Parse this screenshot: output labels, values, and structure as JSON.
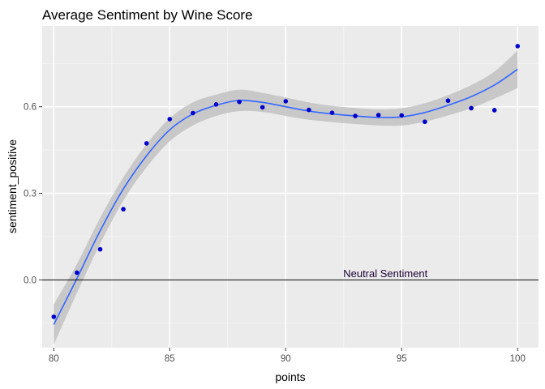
{
  "chart_data": {
    "type": "scatter",
    "title": "Average Sentiment by Wine Score",
    "xlabel": "points",
    "ylabel": "sentiment_positive",
    "xlim": [
      79.5,
      100.9
    ],
    "ylim": [
      -0.235,
      0.88
    ],
    "x_ticks": [
      80,
      85,
      90,
      95,
      100
    ],
    "x_tick_labels": [
      "80",
      "85",
      "90",
      "95",
      "100"
    ],
    "y_ticks": [
      0.0,
      0.3,
      0.6
    ],
    "y_tick_labels": [
      "0.0",
      "0.3",
      "0.6"
    ],
    "grid": true,
    "points": {
      "color": "#0000cc",
      "x": [
        80,
        81,
        82,
        83,
        84,
        85,
        86,
        87,
        88,
        89,
        90,
        91,
        92,
        93,
        94,
        95,
        96,
        97,
        98,
        99,
        100
      ],
      "y": [
        -0.128,
        0.025,
        0.106,
        0.245,
        0.473,
        0.557,
        0.578,
        0.608,
        0.617,
        0.598,
        0.619,
        0.589,
        0.579,
        0.568,
        0.571,
        0.57,
        0.548,
        0.621,
        0.595,
        0.588,
        0.81
      ]
    },
    "smooth": {
      "color": "#3366ff",
      "band_color": "#c2c2c2",
      "x": [
        80,
        81,
        82,
        83,
        84,
        85,
        86,
        87,
        88,
        89,
        90,
        91,
        92,
        93,
        94,
        95,
        96,
        97,
        98,
        99,
        100
      ],
      "y": [
        -0.155,
        0.005,
        0.17,
        0.315,
        0.43,
        0.52,
        0.575,
        0.605,
        0.622,
        0.615,
        0.6,
        0.585,
        0.575,
        0.568,
        0.563,
        0.565,
        0.58,
        0.605,
        0.635,
        0.675,
        0.73
      ],
      "lower": [
        -0.225,
        -0.045,
        0.125,
        0.275,
        0.39,
        0.48,
        0.535,
        0.568,
        0.585,
        0.582,
        0.568,
        0.555,
        0.547,
        0.54,
        0.535,
        0.535,
        0.548,
        0.57,
        0.595,
        0.628,
        0.665
      ],
      "upper": [
        -0.085,
        0.055,
        0.215,
        0.355,
        0.47,
        0.56,
        0.615,
        0.642,
        0.659,
        0.648,
        0.632,
        0.615,
        0.603,
        0.596,
        0.591,
        0.595,
        0.612,
        0.64,
        0.675,
        0.722,
        0.795
      ]
    },
    "hline": {
      "y": 0.0,
      "color": "#000000"
    },
    "annotations": [
      {
        "text": "Neutral Sentiment",
        "x": 94.3,
        "y": 0.02
      }
    ]
  }
}
